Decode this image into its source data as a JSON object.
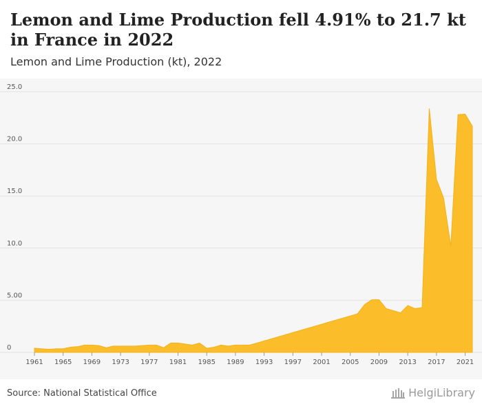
{
  "title": "Lemon and Lime Production fell 4.91% to 21.7 kt in France in 2022",
  "subtitle": "Lemon and Lime Production (kt), 2022",
  "source": "Source: National Statistical Office",
  "logo_text": "HelgiLibrary",
  "colors": {
    "area": "#fbbd2a",
    "area_stroke": "#f2b21c",
    "plot_bg": "#f6f6f6",
    "grid": "#e2e2e2"
  },
  "chart_data": {
    "type": "area",
    "title": "Lemon and Lime Production fell 4.91% to 21.7 kt in France in 2022",
    "subtitle": "Lemon and Lime Production (kt), 2022",
    "xlabel": "",
    "ylabel": "",
    "ylim": [
      0,
      25
    ],
    "yticks": [
      "0",
      "5.00",
      "10.0",
      "15.0",
      "20.0",
      "25.0"
    ],
    "ytick_values": [
      0,
      5,
      10,
      15,
      20,
      25
    ],
    "xticks": [
      "1961",
      "1965",
      "1969",
      "1973",
      "1977",
      "1981",
      "1985",
      "1989",
      "1993",
      "1997",
      "2001",
      "2005",
      "2009",
      "2013",
      "2017",
      "2021"
    ],
    "grid": true,
    "x": [
      1961,
      1962,
      1963,
      1964,
      1965,
      1966,
      1967,
      1968,
      1969,
      1970,
      1971,
      1972,
      1973,
      1974,
      1975,
      1976,
      1977,
      1978,
      1979,
      1980,
      1981,
      1982,
      1983,
      1984,
      1985,
      1986,
      1987,
      1988,
      1989,
      1990,
      1991,
      1992,
      1993,
      1994,
      1995,
      1996,
      1997,
      1998,
      1999,
      2000,
      2001,
      2002,
      2003,
      2004,
      2005,
      2006,
      2007,
      2008,
      2009,
      2010,
      2011,
      2012,
      2013,
      2014,
      2015,
      2016,
      2017,
      2018,
      2019,
      2020,
      2021,
      2022
    ],
    "series": [
      {
        "values": [
          0.4,
          0.35,
          0.3,
          0.35,
          0.35,
          0.5,
          0.55,
          0.7,
          0.7,
          0.65,
          0.45,
          0.6,
          0.6,
          0.6,
          0.6,
          0.65,
          0.7,
          0.7,
          0.45,
          0.9,
          0.9,
          0.8,
          0.7,
          0.9,
          0.4,
          0.5,
          0.7,
          0.6,
          0.7,
          0.7,
          0.7,
          0.9,
          1.1,
          1.3,
          1.5,
          1.7,
          1.9,
          2.1,
          2.3,
          2.5,
          2.7,
          2.9,
          3.1,
          3.3,
          3.5,
          3.7,
          4.6,
          5.05,
          5.05,
          4.2,
          4.0,
          3.8,
          4.5,
          4.2,
          4.3,
          23.4,
          16.6,
          14.8,
          10.2,
          22.8,
          22.85,
          21.7
        ]
      }
    ]
  }
}
